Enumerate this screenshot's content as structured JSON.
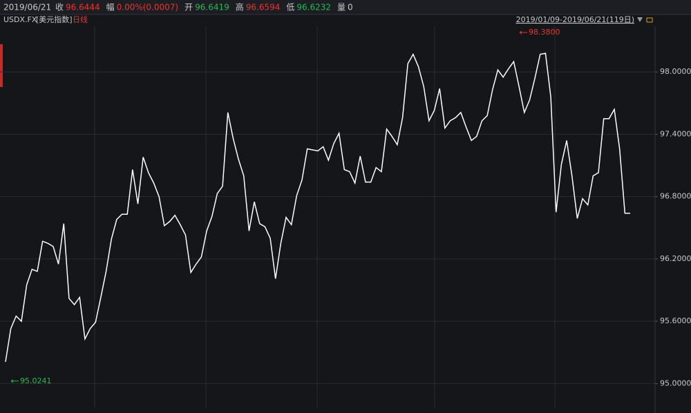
{
  "header": {
    "date": "2019/06/21",
    "quote": [
      {
        "label": "收",
        "value": "96.6444",
        "color": "#e8352d"
      },
      {
        "label": "幅",
        "value": "0.00%(0.0007)",
        "color": "#e8352d"
      },
      {
        "label": "开",
        "value": "96.6419",
        "color": "#1fbd4e"
      },
      {
        "label": "高",
        "value": "96.6594",
        "color": "#e8352d"
      },
      {
        "label": "低",
        "value": "96.6232",
        "color": "#1fbd4e"
      },
      {
        "label": "量",
        "value": "0",
        "color": "#c8c8c8"
      }
    ],
    "symbol": "USDX.FX",
    "name": "[美元指数]",
    "period": "日线",
    "range": "2019/01/09-2019/06/21(119日)"
  },
  "chart_data": {
    "type": "line",
    "color": "#ffffff",
    "values": [
      95.21,
      95.53,
      95.65,
      95.6,
      95.95,
      96.1,
      96.08,
      96.37,
      96.35,
      96.32,
      96.15,
      96.54,
      95.82,
      95.76,
      95.83,
      95.43,
      95.53,
      95.59,
      95.83,
      96.08,
      96.39,
      96.58,
      96.63,
      96.63,
      97.06,
      96.73,
      97.18,
      97.03,
      96.93,
      96.8,
      96.52,
      96.56,
      96.62,
      96.53,
      96.43,
      96.07,
      96.15,
      96.22,
      96.47,
      96.61,
      96.83,
      96.9,
      97.61,
      97.36,
      97.16,
      97.0,
      96.47,
      96.75,
      96.54,
      96.51,
      96.4,
      96.01,
      96.35,
      96.6,
      96.53,
      96.81,
      96.96,
      97.26,
      97.25,
      97.24,
      97.28,
      97.15,
      97.31,
      97.41,
      97.06,
      97.04,
      96.93,
      97.19,
      96.94,
      96.94,
      97.08,
      97.04,
      97.45,
      97.38,
      97.3,
      97.56,
      98.08,
      98.17,
      98.05,
      97.86,
      97.53,
      97.63,
      97.84,
      97.46,
      97.53,
      97.56,
      97.61,
      97.47,
      97.34,
      97.38,
      97.53,
      97.58,
      97.83,
      98.02,
      97.95,
      98.03,
      98.1,
      97.86,
      97.61,
      97.73,
      97.94,
      98.17,
      98.18,
      97.76,
      96.65,
      97.11,
      97.34,
      97.0,
      96.59,
      96.78,
      96.72,
      97.0,
      97.03,
      97.55,
      97.55,
      97.64,
      97.26,
      96.64,
      96.64
    ],
    "ylim": [
      94.77,
      98.44
    ],
    "yticks": [
      {
        "value": 95,
        "label": "95.0000"
      },
      {
        "value": 95.6,
        "label": "95.6000"
      },
      {
        "value": 96.2,
        "label": "96.2000"
      },
      {
        "value": 96.8,
        "label": "96.8000"
      },
      {
        "value": 97.4,
        "label": "97.4000"
      },
      {
        "value": 98,
        "label": "98.0000"
      }
    ],
    "grid": true,
    "annotations": [
      {
        "value": 98.38,
        "label": "98.3800",
        "color": "#e8352d"
      },
      {
        "value": 95.0241,
        "label": "95.0241",
        "color": "#1fbd4e"
      }
    ]
  }
}
